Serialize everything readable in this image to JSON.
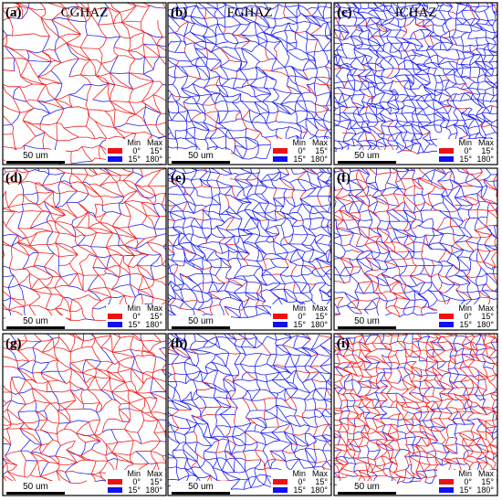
{
  "panels": [
    {
      "label": "(a)",
      "title": "CGHAZ"
    },
    {
      "label": "(b)",
      "title": "FGHAZ"
    },
    {
      "label": "(c)",
      "title": "ICHAZ"
    },
    {
      "label": "(d)"
    },
    {
      "label": "(e)"
    },
    {
      "label": "(f)"
    },
    {
      "label": "(g)"
    },
    {
      "label": "(h)"
    },
    {
      "label": "(i)"
    }
  ],
  "scale_bar": "50 um",
  "legend": {
    "headers": [
      "Min",
      "Max"
    ],
    "rows": [
      {
        "min": "0°",
        "max": "15°"
      },
      {
        "min": "15°",
        "max": "180°"
      }
    ]
  }
}
